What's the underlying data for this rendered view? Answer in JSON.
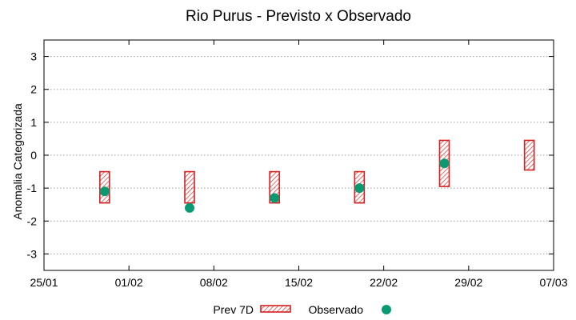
{
  "chart_data": {
    "type": "interval",
    "title": "Rio Purus - Previsto x Observado",
    "xlabel": "",
    "ylabel": "Anomalia Categorizada",
    "ylim": [
      -3.5,
      3.5
    ],
    "yticks": [
      -3,
      -2,
      -1,
      0,
      1,
      2,
      3
    ],
    "xticks": [
      "25/01",
      "01/02",
      "08/02",
      "15/02",
      "22/02",
      "29/02",
      "07/03"
    ],
    "xlim_days": [
      0,
      42
    ],
    "grid": true,
    "legend_position": "bottom-center",
    "series": [
      {
        "name": "Prev 7D",
        "kind": "range-box",
        "day": [
          5,
          12,
          19,
          26,
          33,
          40
        ],
        "low": [
          -1.45,
          -1.45,
          -1.45,
          -1.45,
          -0.95,
          -0.45
        ],
        "high": [
          -0.5,
          -0.5,
          -0.5,
          -0.5,
          0.45,
          0.45
        ]
      },
      {
        "name": "Observado",
        "kind": "point",
        "day": [
          5,
          12,
          19,
          26,
          33
        ],
        "values": [
          -1.1,
          -1.6,
          -1.3,
          -1.0,
          -0.25
        ]
      }
    ],
    "colors": {
      "forecast_stroke": "#d42020",
      "forecast_hatch": "#d42020",
      "observed": "#0a9a72",
      "grid": "#a0a0a0",
      "axis": "#000000"
    }
  },
  "legend": {
    "forecast_label": "Prev 7D",
    "observed_label": "Observado"
  }
}
